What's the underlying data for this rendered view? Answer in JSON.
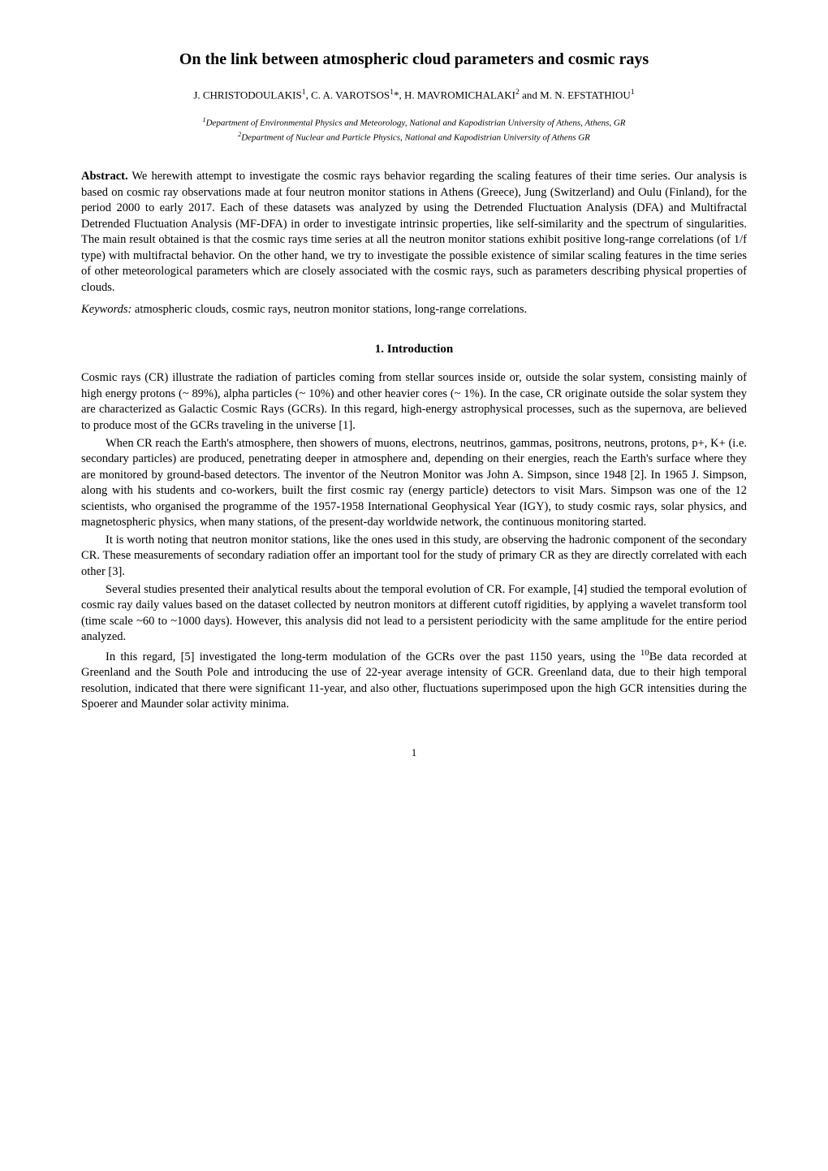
{
  "title": "On the link between atmospheric cloud parameters and cosmic rays",
  "authors_html": "J. CHRISTODOULAKIS<sup>1</sup>, C. A. VAROTSOS<sup>1</sup>*, H. MAVROMICHALAKI<sup>2</sup> and M. N. EFSTATHIOU<sup>1</sup>",
  "affiliations": [
    "<sup>1</sup>Department of Environmental Physics and Meteorology, National and Kapodistrian University of Athens, Athens, GR",
    "<sup>2</sup>Department of Nuclear and Particle Physics, National and Kapodistrian University of Athens GR"
  ],
  "abstract_label": "Abstract.",
  "abstract_text": " We herewith attempt to investigate the cosmic rays behavior regarding the scaling features of their time series. Our analysis is based on cosmic ray observations made at four neutron monitor stations in Athens (Greece), Jung (Switzerland) and Oulu (Finland), for the period 2000 to early 2017. Each of these datasets was analyzed by using the Detrended Fluctuation Analysis (DFA) and Multifractal Detrended Fluctuation Analysis (MF-DFA) in order to investigate intrinsic properties, like self-similarity and the spectrum of singularities. The main result obtained is that the cosmic rays time series at all the neutron monitor stations exhibit positive long-range correlations (of 1/f type) with multifractal behavior. On the other hand, we try to investigate the possible existence of similar scaling features in the time series of other meteorological parameters which are closely associated with the cosmic rays, such as parameters describing physical properties of clouds.",
  "keywords_label": "Keywords:",
  "keywords_text": " atmospheric clouds, cosmic rays, neutron monitor stations, long-range correlations.",
  "section_heading": "1. Introduction",
  "paragraphs": [
    "Cosmic rays (CR) illustrate the radiation of particles coming from stellar sources inside or, outside the solar system, consisting mainly of high energy protons (~ 89%), alpha particles (~ 10%) and other heavier cores (~ 1%). In the case, CR originate outside the solar system they are characterized as Galactic Cosmic Rays (GCRs). In this regard, high-energy astrophysical processes, such as the supernova, are believed to produce most of the GCRs traveling in the universe [1].",
    "When CR reach the Earth's atmosphere, then showers of muons, electrons, neutrinos, gammas, positrons, neutrons, protons, p+, K+ (i.e. secondary particles) are produced, penetrating deeper in atmosphere and, depending on their energies, reach the Earth's surface where they are monitored by ground-based detectors. The inventor of the Neutron Monitor was John A. Simpson, since 1948 [2]. In 1965 J. Simpson, along with his students and co-workers, built the first cosmic ray (energy particle) detectors to visit Mars. Simpson was one of the 12 scientists, who organised the programme of the 1957-1958 International Geophysical Year (IGY), to study cosmic rays, solar physics, and magnetospheric physics, when many stations, of the present-day worldwide network, the continuous monitoring started.",
    "It is worth noting that neutron monitor stations, like the ones used in this study, are observing the hadronic component of the secondary CR. These measurements of secondary radiation offer an important tool for the study of primary CR as they are directly correlated with each other [3].",
    "Several studies presented their analytical results about the temporal evolution of CR. For example, [4] studied the temporal evolution of cosmic ray daily values based on the dataset collected by neutron monitors at different cutoff rigidities, by applying a wavelet transform tool (time scale ~60 to ~1000 days). However, this analysis did not lead to a persistent periodicity with the same amplitude for the entire period analyzed.",
    "In this regard, [5] investigated the long-term modulation of the GCRs over the past 1150 years, using the <sup>10</sup>Be data recorded at Greenland and the South Pole and introducing the use of 22-year average intensity of GCR. Greenland data, due to their high temporal resolution, indicated that there were significant 11-year, and also other, fluctuations superimposed upon the high GCR intensities during the Spoerer and Maunder solar activity minima."
  ],
  "page_number": "1"
}
